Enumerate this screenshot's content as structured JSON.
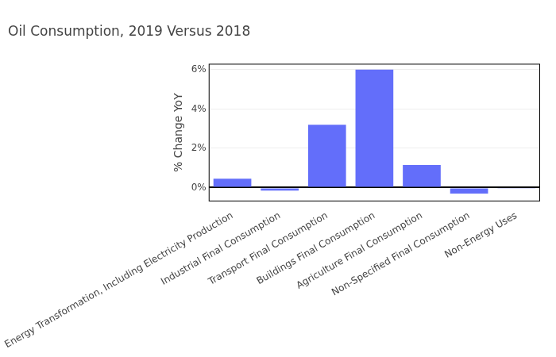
{
  "chart_data": {
    "type": "bar",
    "title": "Oil Consumption, 2019 Versus 2018",
    "y_label": "% Change YoY",
    "categories": [
      "Energy Transformation, Including Electricity Production",
      "Industrial Final Consumption",
      "Transport Final Consumption",
      "Buildings Final Consumption",
      "Agriculture Final Consumption",
      "Non-Specified Final Consumption",
      "Non-Energy Uses"
    ],
    "values": [
      0.45,
      -0.15,
      3.2,
      6.0,
      1.15,
      -0.3,
      -0.05
    ],
    "color": "#636efa",
    "ylim": [
      -0.7,
      6.3
    ],
    "yticks": [
      {
        "value": 0,
        "label": "0%"
      },
      {
        "value": 2,
        "label": "2%"
      },
      {
        "value": 4,
        "label": "4%"
      },
      {
        "value": 6,
        "label": "6%"
      }
    ],
    "grid": true
  }
}
